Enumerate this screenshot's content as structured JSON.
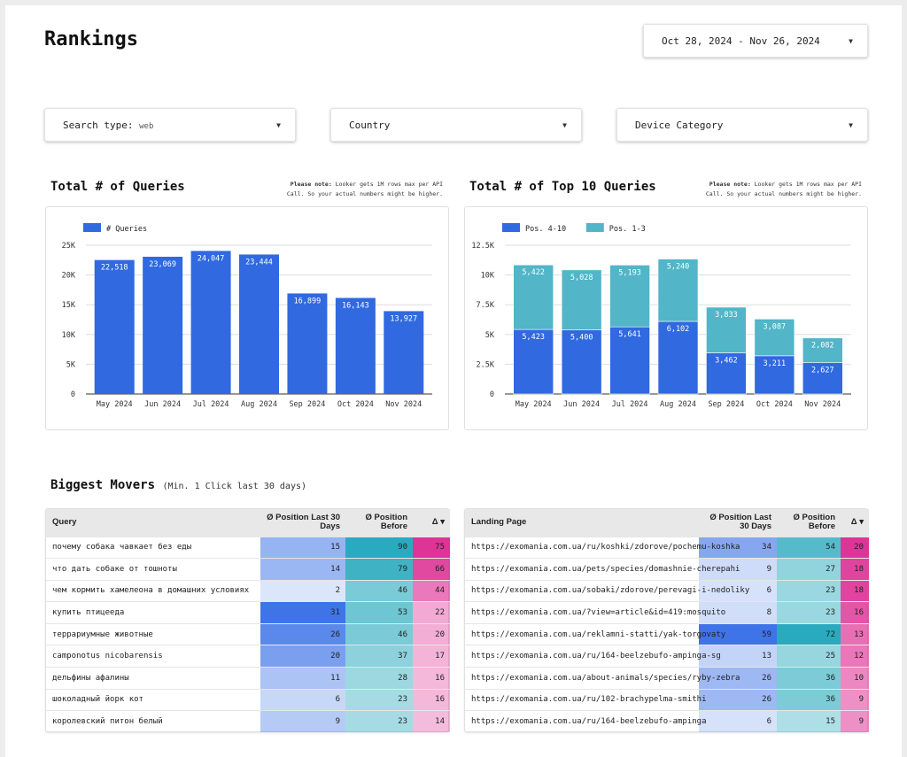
{
  "title": "Rankings",
  "date_range": "Oct 28, 2024 - Nov 26, 2024",
  "filters": {
    "search_type_label": "Search type:",
    "search_type_value": "web",
    "country": "Country",
    "device": "Device Category"
  },
  "note": {
    "bold": "Please note:",
    "line1": " Looker gets 1M rows max per API",
    "line2": "Call. So your actual numbers might be higher."
  },
  "chart1_title": "Total # of Queries",
  "chart2_title": "Total # of Top 10 Queries",
  "movers_title": "Biggest Movers",
  "movers_sub": "(Min. 1 Click last 30 days)",
  "chart_data": [
    {
      "type": "bar",
      "title": "Total # of Queries",
      "categories": [
        "May 2024",
        "Jun 2024",
        "Jul 2024",
        "Aug 2024",
        "Sep 2024",
        "Oct 2024",
        "Nov 2024"
      ],
      "series": [
        {
          "name": "# Queries",
          "color": "#3069e0",
          "values": [
            22518,
            23069,
            24047,
            23444,
            16899,
            16143,
            13927
          ]
        }
      ],
      "ylim": [
        0,
        25000
      ],
      "ticks": [
        "0",
        "5K",
        "10K",
        "15K",
        "20K",
        "25K"
      ],
      "tick_values": [
        0,
        5000,
        10000,
        15000,
        20000,
        25000
      ],
      "legend": "top-left"
    },
    {
      "type": "bar",
      "stacked": true,
      "title": "Total # of Top 10 Queries",
      "categories": [
        "May 2024",
        "Jun 2024",
        "Jul 2024",
        "Aug 2024",
        "Sep 2024",
        "Oct 2024",
        "Nov 2024"
      ],
      "series": [
        {
          "name": "Pos. 4-10",
          "color": "#3069e0",
          "values": [
            5423,
            5400,
            5641,
            6102,
            3462,
            3211,
            2627
          ]
        },
        {
          "name": "Pos. 1-3",
          "color": "#52b5c8",
          "values": [
            5422,
            5028,
            5193,
            5240,
            3833,
            3087,
            2082
          ]
        }
      ],
      "ylim": [
        0,
        12500
      ],
      "ticks": [
        "0",
        "2.5K",
        "5K",
        "7.5K",
        "10K",
        "12.5K"
      ],
      "tick_values": [
        0,
        2500,
        5000,
        7500,
        10000,
        12500
      ],
      "legend": "top-left"
    }
  ],
  "queries_table": {
    "headers": [
      "Query",
      "Ø Position Last 30 Days",
      "Ø Position Before",
      "Δ ▾"
    ],
    "rows": [
      [
        "почему собака чавкает без еды",
        15,
        90,
        75
      ],
      [
        "что дать собаке от тошноты",
        14,
        79,
        66
      ],
      [
        "чем кормить хамелеона в домашних условиях",
        2,
        46,
        44
      ],
      [
        "купить птицееда",
        31,
        53,
        22
      ],
      [
        "террариумные животные",
        26,
        46,
        20
      ],
      [
        "camponotus nicobarensis",
        20,
        37,
        17
      ],
      [
        "дельфины афалины",
        11,
        28,
        16
      ],
      [
        "шоколадный йорк кот",
        6,
        23,
        16
      ],
      [
        "королевский питон белый",
        9,
        23,
        14
      ]
    ]
  },
  "pages_table": {
    "headers": [
      "Landing Page",
      "Ø Position Last 30 Days",
      "Ø Position Before",
      "Δ ▾"
    ],
    "rows": [
      [
        "https://exomania.com.ua/ru/koshki/zdorove/pochemu-koshka",
        34,
        54,
        20
      ],
      [
        "https://exomania.com.ua/pets/species/domashnie-cherepahi",
        9,
        27,
        18
      ],
      [
        "https://exomania.com.ua/sobaki/zdorove/perevagi-i-nedoliky",
        6,
        23,
        18
      ],
      [
        "https://exomania.com.ua/?view=article&id=419:mosquito",
        8,
        23,
        16
      ],
      [
        "https://exomania.com.ua/reklamni-statti/yak-torgovaty",
        59,
        72,
        13
      ],
      [
        "https://exomania.com.ua/ru/164-beelzebufo-ampinga-sg",
        13,
        25,
        12
      ],
      [
        "https://exomania.com.ua/about-animals/species/ryby-zebra",
        26,
        36,
        10
      ],
      [
        "https://exomania.com.ua/ru/102-brachypelma-smithi",
        26,
        36,
        9
      ],
      [
        "https://exomania.com.ua/ru/164-beelzebufo-ampinga",
        6,
        15,
        9
      ]
    ]
  }
}
